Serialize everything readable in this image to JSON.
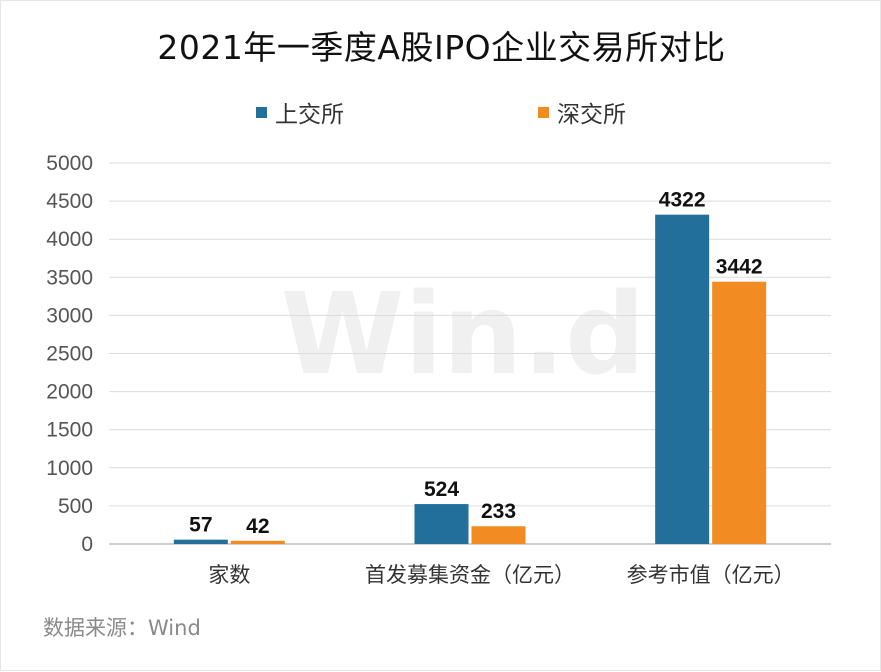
{
  "watermark": "Win.d",
  "source_text": "数据来源：Wind",
  "colors": {
    "sh": "#236f9c",
    "sz": "#f28b21",
    "grid": "#dcdcdc",
    "text": "#333333"
  },
  "chart_data": {
    "type": "bar",
    "title": "2021年一季度A股IPO企业交易所对比",
    "categories": [
      "家数",
      "首发募集资金（亿元）",
      "参考市值（亿元）"
    ],
    "series": [
      {
        "name": "上交所",
        "values": [
          57,
          524,
          4322
        ]
      },
      {
        "name": "深交所",
        "values": [
          42,
          233,
          3442
        ]
      }
    ],
    "ylim": [
      0,
      5000
    ],
    "yticks": [
      0,
      500,
      1000,
      1500,
      2000,
      2500,
      3000,
      3500,
      4000,
      4500,
      5000
    ],
    "grid": true,
    "legend": "top",
    "data_labels": true
  }
}
